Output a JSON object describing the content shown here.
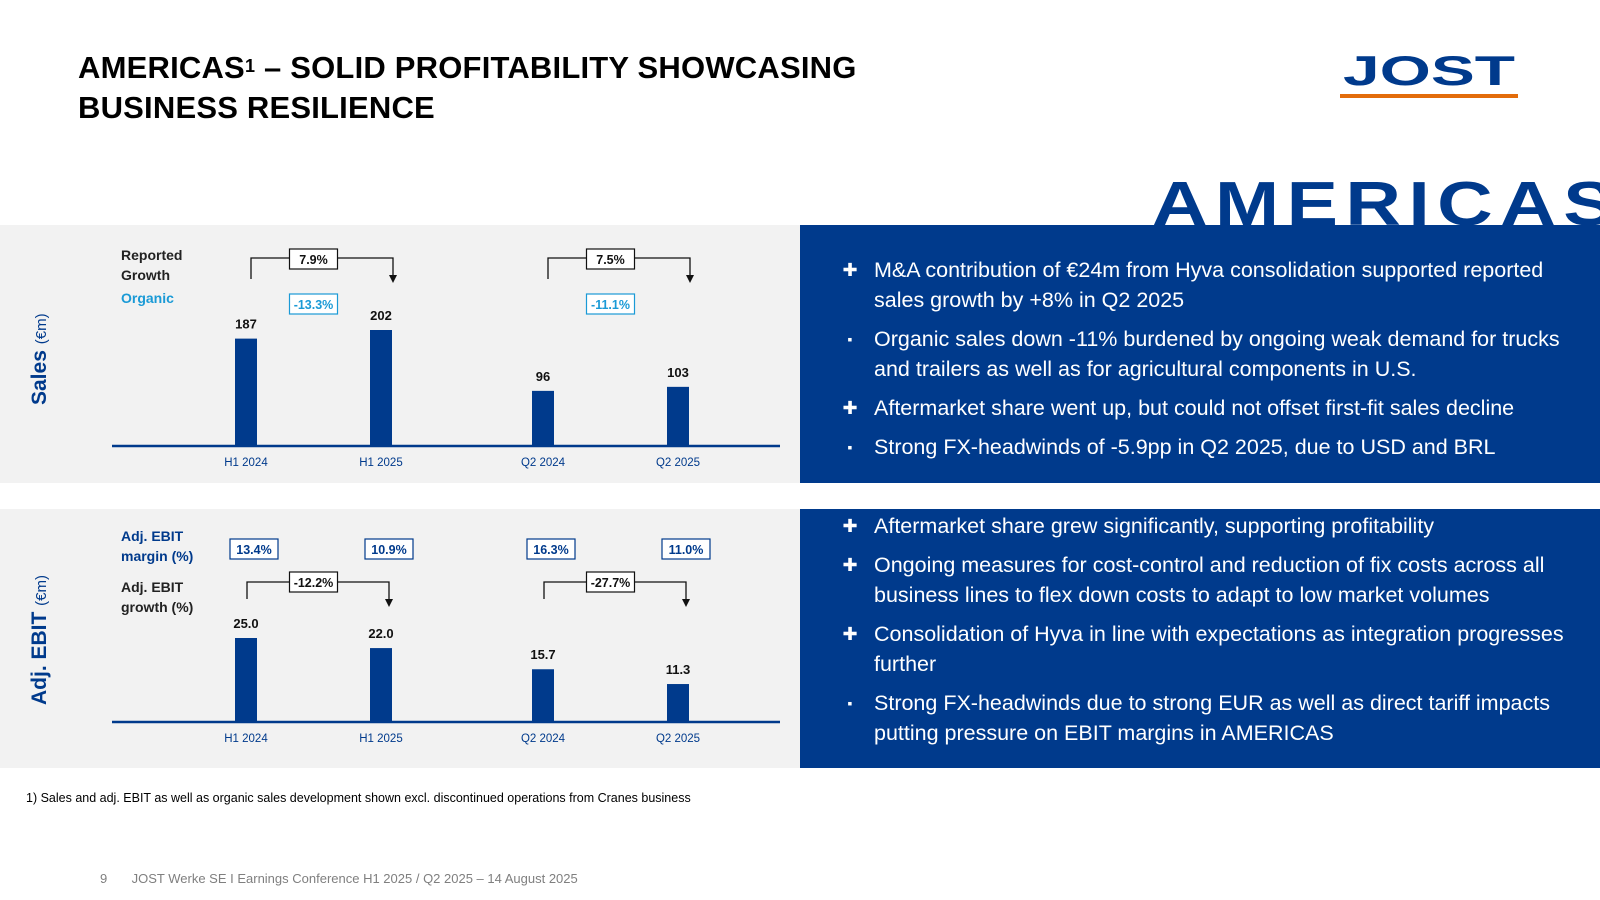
{
  "title": {
    "line1": "AMERICAS",
    "sup": "1",
    "line1_rest": " – SOLID PROFITABILITY SHOWCASING",
    "line2": "BUSINESS RESILIENCE"
  },
  "logo": {
    "text": "JOST",
    "brand_color": "#003a8c",
    "accent_color": "#e36c0a"
  },
  "region_word": "AMERICAS",
  "colors": {
    "primary": "#003a8c",
    "organic": "#1a9ad6",
    "panel_bg": "#f2f2f2"
  },
  "sales": {
    "axis_title": "Sales",
    "axis_unit": "(€m)",
    "reported_label": [
      "Reported",
      "Growth"
    ],
    "organic_label": "Organic",
    "bullets": [
      {
        "mark": "+",
        "text": "M&A contribution of €24m from Hyva consolidation supported reported sales growth by +8% in Q2 2025"
      },
      {
        "mark": "-",
        "text": "Organic sales down -11% burdened by ongoing weak demand for trucks and trailers as well as for agricultural components in U.S."
      },
      {
        "mark": "+",
        "text": "Aftermarket share went up, but could not offset first-fit sales decline"
      },
      {
        "mark": "-",
        "text": "Strong FX-headwinds of -5.9pp in Q2 2025, due to USD and BRL"
      }
    ]
  },
  "ebit": {
    "axis_title": "Adj. EBIT",
    "axis_unit": "(€m)",
    "margin_label": [
      "Adj. EBIT",
      "margin (%)"
    ],
    "growth_label": [
      "Adj. EBIT",
      "growth (%)"
    ],
    "bullets": [
      {
        "mark": "+",
        "text": "Aftermarket share grew significantly, supporting profitability"
      },
      {
        "mark": "+",
        "text": "Ongoing measures for cost-control and reduction of fix costs across all business lines to flex down costs to adapt to low market volumes"
      },
      {
        "mark": "+",
        "text": "Consolidation of Hyva in line with expectations as integration progresses further"
      },
      {
        "mark": "-",
        "text": "Strong FX-headwinds due to strong EUR as well as direct tariff impacts putting pressure on EBIT margins in AMERICAS"
      }
    ]
  },
  "chart_data": [
    {
      "type": "bar",
      "title": "Sales (€m)",
      "categories": [
        "H1 2024",
        "H1 2025",
        "Q2 2024",
        "Q2 2025"
      ],
      "values": [
        187,
        202,
        96,
        103
      ],
      "value_labels": [
        "187",
        "202",
        "96",
        "103"
      ],
      "ylabel": "Sales (€m)",
      "ylim": [
        0,
        202
      ],
      "comparisons": [
        {
          "from": "H1 2024",
          "to": "H1 2025",
          "reported_growth": "7.9%",
          "organic_growth": "-13.3%"
        },
        {
          "from": "Q2 2024",
          "to": "Q2 2025",
          "reported_growth": "7.5%",
          "organic_growth": "-11.1%"
        }
      ]
    },
    {
      "type": "bar",
      "title": "Adj. EBIT (€m)",
      "categories": [
        "H1 2024",
        "H1 2025",
        "Q2 2024",
        "Q2 2025"
      ],
      "values": [
        25.0,
        22.0,
        15.7,
        11.3
      ],
      "value_labels": [
        "25.0",
        "22.0",
        "15.7",
        "11.3"
      ],
      "margins": [
        "13.4%",
        "10.9%",
        "16.3%",
        "11.0%"
      ],
      "ylabel": "Adj. EBIT (€m)",
      "ylim": [
        0,
        25
      ],
      "comparisons": [
        {
          "from": "H1 2024",
          "to": "H1 2025",
          "growth": "-12.2%"
        },
        {
          "from": "Q2 2024",
          "to": "Q2 2025",
          "growth": "-27.7%"
        }
      ]
    }
  ],
  "footnote": "1) Sales and adj. EBIT as well as organic sales development shown excl. discontinued operations from Cranes business",
  "footer": {
    "page": "9",
    "text": "JOST Werke SE  I  Earnings Conference H1 2025 / Q2 2025 – 14 August 2025"
  }
}
